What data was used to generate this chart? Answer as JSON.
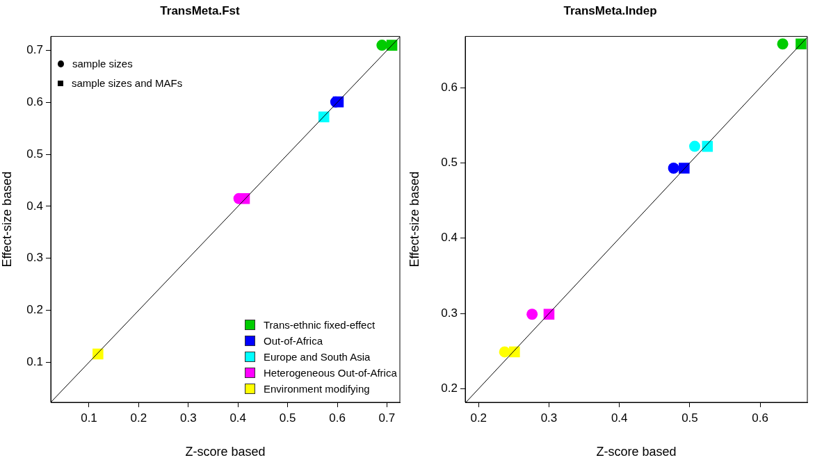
{
  "chart_data": [
    {
      "type": "scatter",
      "title": "TransMeta.Fst",
      "xlabel": "Z-score based",
      "ylabel": "Effect-size based",
      "xlim": [
        0.023,
        0.726
      ],
      "ylim": [
        0.023,
        0.727
      ],
      "xticks": [
        0.1,
        0.2,
        0.3,
        0.4,
        0.5,
        0.6,
        0.7
      ],
      "yticks": [
        0.1,
        0.2,
        0.3,
        0.4,
        0.5,
        0.6,
        0.7
      ],
      "grid": false,
      "legend": "bottom right",
      "annotations": [
        "sample sizes",
        "sample sizes and MAFs"
      ],
      "series": [
        {
          "type": "line",
          "color": "#000000",
          "marker": "none",
          "x": [
            0.023,
            0.726
          ],
          "values": [
            0.023,
            0.726
          ]
        },
        {
          "color": "#00cc00",
          "marker": "circle",
          "x": [
            0.69
          ],
          "values": [
            0.71
          ]
        },
        {
          "name": "Trans-ethnic fixed-effect",
          "color": "#00cc00",
          "marker": "square",
          "x": [
            0.71
          ],
          "values": [
            0.71
          ]
        },
        {
          "color": "#0000ff",
          "marker": "circle",
          "x": [
            0.597
          ],
          "values": [
            0.601
          ]
        },
        {
          "name": "Out-of-Africa",
          "color": "#0000ff",
          "marker": "square",
          "x": [
            0.602
          ],
          "values": [
            0.601
          ]
        },
        {
          "name": "Europe and South Asia",
          "color": "#00ffff",
          "marker": "square",
          "x": [
            0.573
          ],
          "values": [
            0.572
          ]
        },
        {
          "color": "#ff00ff",
          "marker": "circle",
          "x": [
            0.402
          ],
          "values": [
            0.415
          ]
        },
        {
          "name": "Heterogeneous Out-of-Africa",
          "color": "#ff00ff",
          "marker": "square",
          "x": [
            0.413
          ],
          "values": [
            0.415
          ]
        },
        {
          "name": "Environment modifying",
          "color": "#ffff00",
          "marker": "square",
          "x": [
            0.118
          ],
          "values": [
            0.116
          ]
        }
      ]
    },
    {
      "type": "scatter",
      "title": "TransMeta.Indep",
      "xlabel": "Z-score based",
      "ylabel": "Effect-size based",
      "xlim": [
        0.181,
        0.667
      ],
      "ylim": [
        0.182,
        0.668
      ],
      "xticks": [
        0.2,
        0.3,
        0.4,
        0.5,
        0.6
      ],
      "yticks": [
        0.2,
        0.3,
        0.4,
        0.5,
        0.6
      ],
      "grid": false,
      "series": [
        {
          "type": "line",
          "color": "#000000",
          "marker": "none",
          "x": [
            0.182,
            0.667
          ],
          "values": [
            0.182,
            0.667
          ]
        },
        {
          "color": "#00cc00",
          "marker": "circle",
          "x": [
            0.632
          ],
          "values": [
            0.658
          ]
        },
        {
          "color": "#00cc00",
          "marker": "square",
          "x": [
            0.658
          ],
          "values": [
            0.658
          ]
        },
        {
          "color": "#0000ff",
          "marker": "circle",
          "x": [
            0.477
          ],
          "values": [
            0.493
          ]
        },
        {
          "color": "#0000ff",
          "marker": "square",
          "x": [
            0.492
          ],
          "values": [
            0.493
          ]
        },
        {
          "color": "#00ffff",
          "marker": "circle",
          "x": [
            0.507
          ],
          "values": [
            0.522
          ]
        },
        {
          "color": "#00ffff",
          "marker": "square",
          "x": [
            0.525
          ],
          "values": [
            0.522
          ]
        },
        {
          "color": "#ff00ff",
          "marker": "circle",
          "x": [
            0.276
          ],
          "values": [
            0.299
          ]
        },
        {
          "color": "#ff00ff",
          "marker": "square",
          "x": [
            0.3
          ],
          "values": [
            0.299
          ]
        },
        {
          "color": "#ffff00",
          "marker": "circle",
          "x": [
            0.237
          ],
          "values": [
            0.249
          ]
        },
        {
          "color": "#ffff00",
          "marker": "square",
          "x": [
            0.251
          ],
          "values": [
            0.249
          ]
        }
      ]
    }
  ]
}
